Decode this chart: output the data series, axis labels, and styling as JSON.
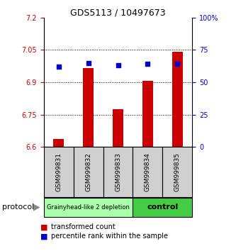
{
  "title": "GDS5113 / 10497673",
  "samples": [
    "GSM999831",
    "GSM999832",
    "GSM999833",
    "GSM999834",
    "GSM999835"
  ],
  "bar_values": [
    6.635,
    6.965,
    6.775,
    6.905,
    7.04
  ],
  "percentile_values": [
    62,
    65,
    63,
    64,
    64
  ],
  "bar_bottom": 6.6,
  "ylim": [
    6.6,
    7.2
  ],
  "ylim_right": [
    0,
    100
  ],
  "yticks_left": [
    6.6,
    6.75,
    6.9,
    7.05,
    7.2
  ],
  "yticks_right": [
    0,
    25,
    50,
    75,
    100
  ],
  "ytick_labels_left": [
    "6.6",
    "6.75",
    "6.9",
    "7.05",
    "7.2"
  ],
  "ytick_labels_right": [
    "0",
    "25",
    "50",
    "75",
    "100%"
  ],
  "bar_color": "#cc0000",
  "dot_color": "#0000cc",
  "group1_label": "Grainyhead-like 2 depletion",
  "group2_label": "control",
  "group1_color": "#aaffaa",
  "group2_color": "#44cc44",
  "protocol_label": "protocol",
  "legend_bar_label": "transformed count",
  "legend_dot_label": "percentile rank within the sample",
  "tick_color_left": "#cc0000",
  "tick_color_right": "#0000cc",
  "sample_box_color": "#d0d0d0",
  "title_fontsize": 9
}
